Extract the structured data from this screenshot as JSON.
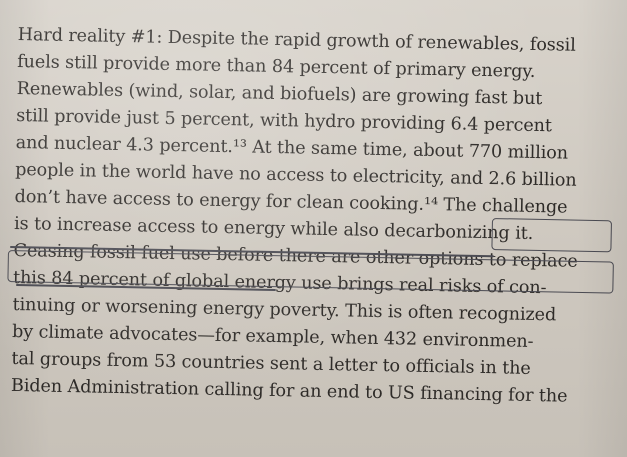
{
  "book_page": {
    "lines": [
      "Hard reality #1: Despite the rapid growth of renewables, fossil",
      "fuels still provide more than 84 percent of primary energy.",
      "Renewables (wind, solar, and biofuels) are growing fast but",
      "still provide just 5 percent, with hydro providing 6.4 percent",
      "and nuclear 4.3 percent.¹³ At the same time, about 770 million",
      "people in the world have no access to electricity, and 2.6 billion",
      "don’t have access to energy for clean cooking.¹⁴ The challenge",
      "is to increase access to energy while also decarbonizing it.",
      "Ceasing fossil fuel use before there are other options to replace",
      "this 84 percent of global energy use brings real risks of con-",
      "tinuing or worsening energy poverty. This is often recognized",
      "by climate advocates—for example, when 432 environmen-",
      "tal groups from 53 countries sent a letter to officials in the",
      "Biden Administration calling for an end to US financing for the"
    ]
  }
}
